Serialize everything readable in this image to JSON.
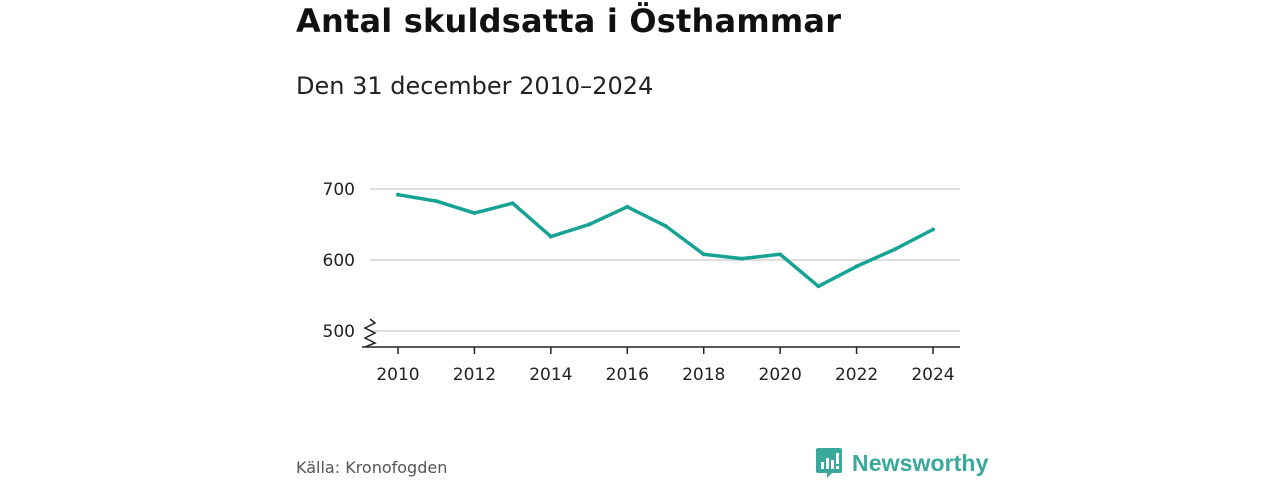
{
  "title": "Antal skuldsatta i Östhammar",
  "subtitle": "Den 31 december 2010–2024",
  "source": "Källa: Kronofogden",
  "brand": {
    "name": "Newsworthy",
    "color": "#3aa89a",
    "icon": "newsworthy-logo-icon"
  },
  "colors": {
    "line": "#16a394",
    "grid": "#d4d4d4",
    "axis": "#222222"
  },
  "chart_data": {
    "type": "line",
    "title": "Antal skuldsatta i Östhammar",
    "subtitle": "Den 31 december 2010–2024",
    "x": [
      2010,
      2011,
      2012,
      2013,
      2014,
      2015,
      2016,
      2017,
      2018,
      2019,
      2020,
      2021,
      2022,
      2023,
      2024
    ],
    "series": [
      {
        "name": "Antal skuldsatta",
        "values": [
          692,
          683,
          666,
          680,
          633,
          650,
          675,
          648,
          608,
          602,
          608,
          563,
          591,
          615,
          643
        ]
      }
    ],
    "xticks": [
      "2010",
      "2012",
      "2014",
      "2016",
      "2018",
      "2020",
      "2022",
      "2024"
    ],
    "yticks": [
      "500",
      "600",
      "700"
    ],
    "ylim": [
      500,
      700
    ],
    "xlim": [
      2010,
      2024
    ],
    "y_axis_break": true,
    "grid": "horizontal",
    "xlabel": "",
    "ylabel": ""
  }
}
